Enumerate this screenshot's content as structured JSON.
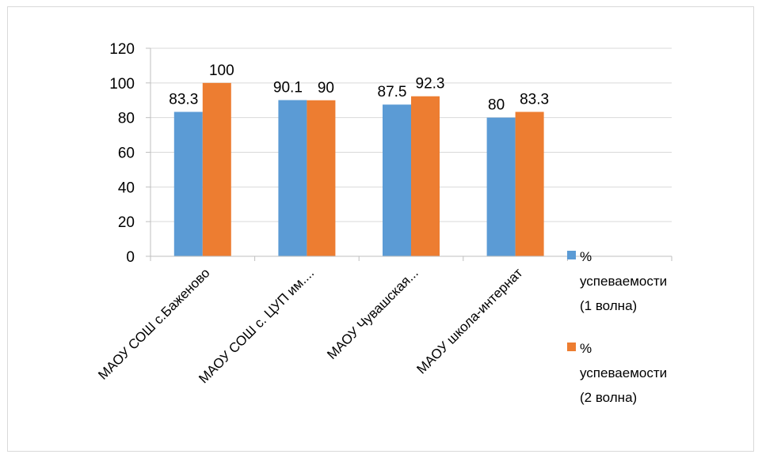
{
  "chart_data": {
    "type": "bar",
    "title": "",
    "xlabel": "",
    "ylabel": "",
    "ylim": [
      0,
      120
    ],
    "yticks": [
      0,
      20,
      40,
      60,
      80,
      100,
      120
    ],
    "grid": true,
    "legend": "right",
    "categories": [
      "МАОУ СОШ с.Баженово",
      "МАОУ СОШ с. ЦУП им....",
      "МАОУ Чувашская...",
      "МАОУ школа-интернат"
    ],
    "series": [
      {
        "name": "% успеваемости (1 волна)",
        "legend_lines": [
          "%",
          "успеваемости",
          "(1 волна)"
        ],
        "color": "#5b9bd5",
        "values": [
          83.3,
          90.1,
          87.5,
          80
        ],
        "labels": [
          "83.3",
          "90.1",
          "87.5",
          "80"
        ]
      },
      {
        "name": "% успеваемости (2 волна)",
        "legend_lines": [
          "%",
          "успеваемости",
          "(2 волна)"
        ],
        "color": "#ed7d31",
        "values": [
          100,
          90,
          92.3,
          83.3
        ],
        "labels": [
          "100",
          "90",
          "92.3",
          "83.3"
        ]
      }
    ],
    "gridline_color": "#d9d9d9",
    "axis_color": "#bfbfbf"
  }
}
